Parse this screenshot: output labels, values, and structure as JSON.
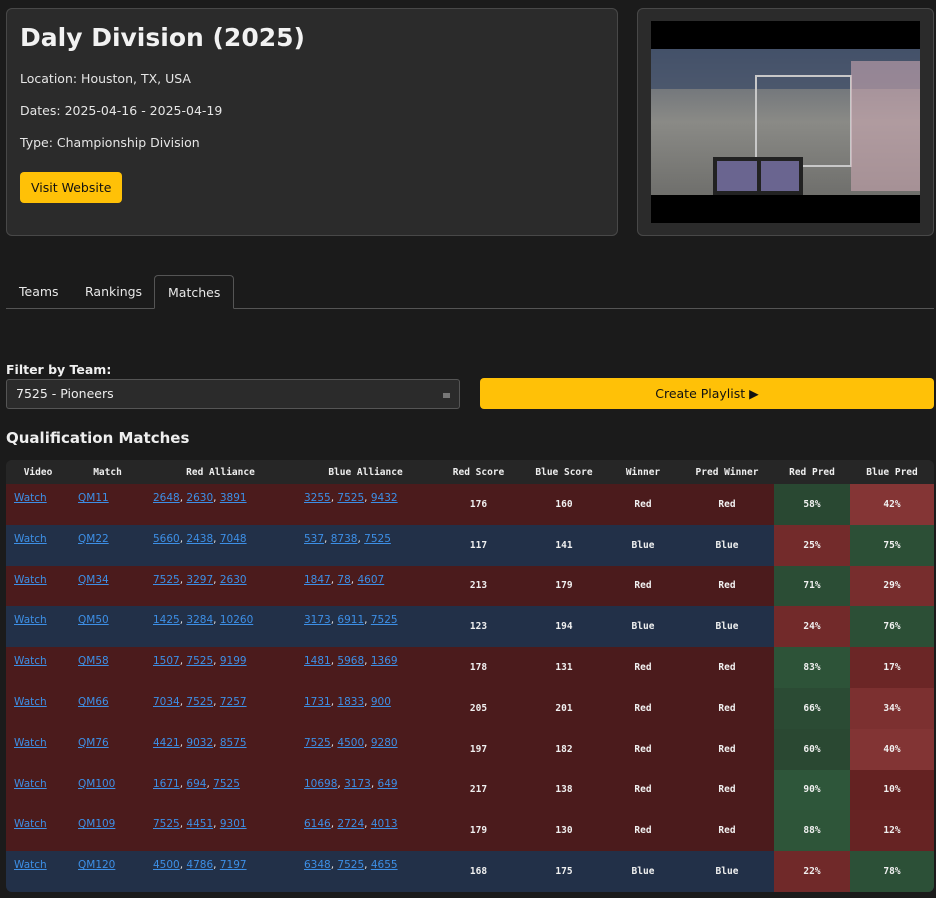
{
  "event": {
    "title": "Daly Division (2025)",
    "location": "Location: Houston, TX, USA",
    "dates": "Dates: 2025-04-16 - 2025-04-19",
    "type": "Type: Championship Division",
    "button": "Visit Website"
  },
  "tabs": [
    "Teams",
    "Rankings",
    "Matches"
  ],
  "active_tab": 2,
  "filter": {
    "label": "Filter by Team:",
    "value": "7525 - Pioneers",
    "button": "Create Playlist ▶"
  },
  "table": {
    "title": "Qualification Matches",
    "columns": [
      "Video",
      "Match",
      "Red Alliance",
      "Blue Alliance",
      "Red Score",
      "Blue Score",
      "Winner",
      "Pred Winner",
      "Red Pred",
      "Blue Pred"
    ],
    "team_separator": ", ",
    "rows": [
      {
        "video": "Watch",
        "match": "QM11",
        "red": [
          2648,
          2630,
          3891
        ],
        "blue": [
          3255,
          7525,
          9432
        ],
        "red_score": 176,
        "blue_score": 160,
        "winner": "Red",
        "pred_winner": "Red",
        "red_pred": "58%",
        "blue_pred": "42%"
      },
      {
        "video": "Watch",
        "match": "QM22",
        "red": [
          5660,
          2438,
          7048
        ],
        "blue": [
          537,
          8738,
          7525
        ],
        "red_score": 117,
        "blue_score": 141,
        "winner": "Blue",
        "pred_winner": "Blue",
        "red_pred": "25%",
        "blue_pred": "75%"
      },
      {
        "video": "Watch",
        "match": "QM34",
        "red": [
          7525,
          3297,
          2630
        ],
        "blue": [
          1847,
          78,
          4607
        ],
        "red_score": 213,
        "blue_score": 179,
        "winner": "Red",
        "pred_winner": "Red",
        "red_pred": "71%",
        "blue_pred": "29%"
      },
      {
        "video": "Watch",
        "match": "QM50",
        "red": [
          1425,
          3284,
          10260
        ],
        "blue": [
          3173,
          6911,
          7525
        ],
        "red_score": 123,
        "blue_score": 194,
        "winner": "Blue",
        "pred_winner": "Blue",
        "red_pred": "24%",
        "blue_pred": "76%"
      },
      {
        "video": "Watch",
        "match": "QM58",
        "red": [
          1507,
          7525,
          9199
        ],
        "blue": [
          1481,
          5968,
          1369
        ],
        "red_score": 178,
        "blue_score": 131,
        "winner": "Red",
        "pred_winner": "Red",
        "red_pred": "83%",
        "blue_pred": "17%"
      },
      {
        "video": "Watch",
        "match": "QM66",
        "red": [
          7034,
          7525,
          7257
        ],
        "blue": [
          1731,
          1833,
          900
        ],
        "red_score": 205,
        "blue_score": 201,
        "winner": "Red",
        "pred_winner": "Red",
        "red_pred": "66%",
        "blue_pred": "34%"
      },
      {
        "video": "Watch",
        "match": "QM76",
        "red": [
          4421,
          9032,
          8575
        ],
        "blue": [
          7525,
          4500,
          9280
        ],
        "red_score": 197,
        "blue_score": 182,
        "winner": "Red",
        "pred_winner": "Red",
        "red_pred": "60%",
        "blue_pred": "40%"
      },
      {
        "video": "Watch",
        "match": "QM100",
        "red": [
          1671,
          694,
          7525
        ],
        "blue": [
          10698,
          3173,
          649
        ],
        "red_score": 217,
        "blue_score": 138,
        "winner": "Red",
        "pred_winner": "Red",
        "red_pred": "90%",
        "blue_pred": "10%"
      },
      {
        "video": "Watch",
        "match": "QM109",
        "red": [
          7525,
          4451,
          9301
        ],
        "blue": [
          6146,
          2724,
          4013
        ],
        "red_score": 179,
        "blue_score": 130,
        "winner": "Red",
        "pred_winner": "Red",
        "red_pred": "88%",
        "blue_pred": "12%"
      },
      {
        "video": "Watch",
        "match": "QM120",
        "red": [
          4500,
          4786,
          7197
        ],
        "blue": [
          6348,
          7525,
          4655
        ],
        "red_score": 168,
        "blue_score": 175,
        "winner": "Blue",
        "pred_winner": "Blue",
        "red_pred": "22%",
        "blue_pred": "78%"
      }
    ]
  }
}
